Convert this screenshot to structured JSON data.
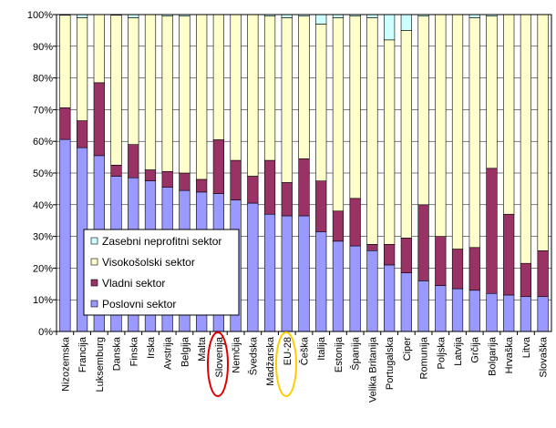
{
  "chart_data": {
    "type": "stacked-bar",
    "categories": [
      "Nizozemska",
      "Francija",
      "Luksemburg",
      "Danska",
      "Finska",
      "Irska",
      "Avstrija",
      "Belgija",
      "Malta",
      "Slovenija",
      "Nemčija",
      "Švedska",
      "Madžarska",
      "EU-28",
      "Češka",
      "Italija",
      "Estonija",
      "Španija",
      "Velika Britanija",
      "Portugalska",
      "Ciper",
      "Romunija",
      "Poljska",
      "Latvija",
      "Grčija",
      "Bolgarija",
      "Hrvaška",
      "Litva",
      "Slovaška"
    ],
    "series": [
      {
        "name": "Poslovni sektor",
        "color": "#9999ff",
        "values": [
          60.6,
          58,
          55.5,
          49,
          48.5,
          47.5,
          45.5,
          44.5,
          44,
          43.5,
          41.5,
          40.5,
          37,
          36.5,
          36.5,
          31.5,
          28.5,
          27,
          25.5,
          21,
          18.5,
          16,
          14.5,
          13.5,
          13,
          12,
          11.5,
          11,
          11
        ]
      },
      {
        "name": "Vladni sektor",
        "color": "#993366",
        "values": [
          10,
          8.5,
          23,
          3.5,
          10.5,
          3.5,
          5,
          5.5,
          4,
          17,
          12.5,
          8.5,
          17,
          10.5,
          18,
          16,
          9.5,
          15,
          2,
          6.5,
          11,
          24,
          15.5,
          12.5,
          13.5,
          39.5,
          25.5,
          10.5,
          14.5
        ]
      },
      {
        "name": "Visokošolski sektor",
        "color": "#ffffcc",
        "values": [
          29.2,
          32.5,
          21.5,
          47.3,
          40,
          49,
          49,
          49.5,
          52,
          39.5,
          46,
          51,
          45.5,
          52,
          45,
          49.5,
          61,
          57.5,
          71.5,
          64.5,
          65.5,
          59.5,
          70,
          74,
          72.5,
          48,
          63,
          78.5,
          74.5
        ]
      },
      {
        "name": "Zasebni neprofitni sektor",
        "color": "#ccffff",
        "values": [
          0.2,
          1,
          0,
          0.2,
          1,
          0,
          0.5,
          0.5,
          0,
          0,
          0,
          0,
          0.5,
          1,
          0.5,
          3,
          1,
          0.5,
          1,
          8,
          5,
          0.5,
          0,
          0,
          1,
          0.5,
          0,
          0,
          0
        ]
      }
    ],
    "ylim": [
      0,
      100
    ],
    "yticks": [
      {
        "value": 0,
        "label": "0%"
      },
      {
        "value": 10,
        "label": "10%"
      },
      {
        "value": 20,
        "label": "20%"
      },
      {
        "value": 30,
        "label": "30%"
      },
      {
        "value": 40,
        "label": "40%"
      },
      {
        "value": 50,
        "label": "50%"
      },
      {
        "value": 60,
        "label": "60%"
      },
      {
        "value": 70,
        "label": "70%"
      },
      {
        "value": 80,
        "label": "80%"
      },
      {
        "value": 90,
        "label": "90%"
      },
      {
        "value": 100,
        "label": "100%"
      }
    ],
    "grid": true
  }
}
